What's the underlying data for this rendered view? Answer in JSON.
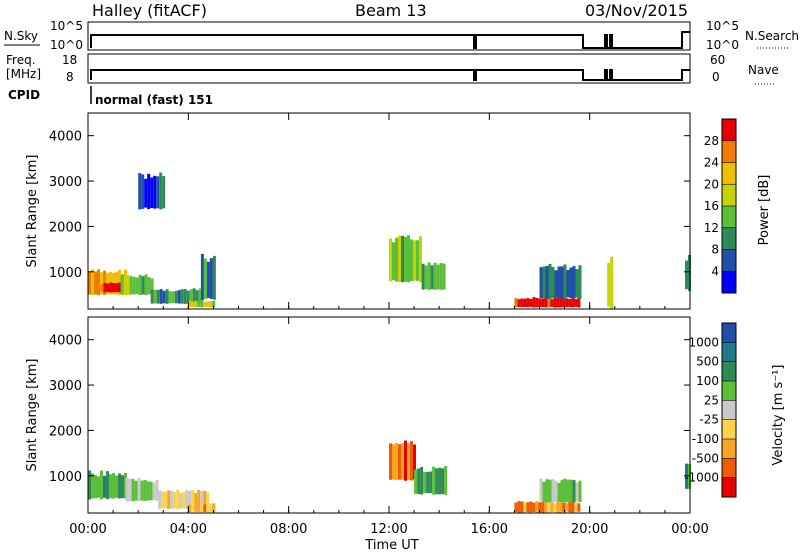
{
  "header": {
    "station": "Halley (fitACF)",
    "beam": "Beam 13",
    "date": "03/Nov/2015"
  },
  "strips": {
    "nsky": {
      "label": "N.Sky",
      "tick_hi": "10^5",
      "tick_lo": "10^0",
      "right_label": "N.Search",
      "right_tick_hi": "10^5",
      "right_tick_lo": "10^0"
    },
    "freq": {
      "label_line1": "Freq.",
      "label_line2": "[MHz]",
      "tick_hi": "18",
      "tick_lo": "8",
      "right_label": "Nave",
      "right_tick_hi": "60",
      "right_tick_lo": "0"
    },
    "cpid": {
      "label": "CPID",
      "value": "normal (fast) 151"
    }
  },
  "chart_data": [
    {
      "type": "heatmap",
      "panel": "power",
      "ylabel": "Slant Range [km]",
      "xlabel": "",
      "yticks": [
        "1000",
        "2000",
        "3000",
        "4000"
      ],
      "ylim": [
        180,
        4500
      ],
      "xlim_hours": [
        0,
        24
      ],
      "colorbar": {
        "label": "Power [dB]",
        "ticks": [
          "4",
          "8",
          "12",
          "16",
          "20",
          "24",
          "28"
        ],
        "range": [
          0,
          32
        ],
        "colors": [
          "#0000ff",
          "#1f4fa8",
          "#2e8b57",
          "#5cbf3a",
          "#c8d200",
          "#f0c000",
          "#f07d00",
          "#e80000"
        ]
      },
      "patches": [
        {
          "t0": 0.0,
          "t1": 1.5,
          "r0": 500,
          "r1": 1000,
          "level": 0.75
        },
        {
          "t0": 0.5,
          "t1": 1.3,
          "r0": 550,
          "r1": 750,
          "level": 0.95
        },
        {
          "t0": 1.3,
          "t1": 2.5,
          "r0": 500,
          "r1": 900,
          "level": 0.45
        },
        {
          "t0": 2.5,
          "t1": 4.5,
          "r0": 300,
          "r1": 600,
          "level": 0.3
        },
        {
          "t0": 4.0,
          "t1": 5.0,
          "r0": 220,
          "r1": 350,
          "level": 0.55
        },
        {
          "t0": 4.5,
          "t1": 5.0,
          "r0": 400,
          "r1": 1300,
          "level": 0.3
        },
        {
          "t0": 2.0,
          "t1": 3.0,
          "r0": 2400,
          "r1": 3100,
          "level": 0.2
        },
        {
          "t0": 12.0,
          "t1": 13.3,
          "r0": 800,
          "r1": 1700,
          "level": 0.45
        },
        {
          "t0": 13.3,
          "t1": 14.2,
          "r0": 600,
          "r1": 1200,
          "level": 0.35
        },
        {
          "t0": 17.0,
          "t1": 19.6,
          "r0": 220,
          "r1": 420,
          "level": 0.98
        },
        {
          "t0": 18.0,
          "t1": 19.6,
          "r0": 420,
          "r1": 1100,
          "level": 0.3
        },
        {
          "t0": 20.7,
          "t1": 20.85,
          "r0": 200,
          "r1": 1300,
          "level": 0.4
        },
        {
          "t0": 23.8,
          "t1": 24.0,
          "r0": 600,
          "r1": 1300,
          "level": 0.35
        }
      ]
    },
    {
      "type": "heatmap",
      "panel": "velocity",
      "ylabel": "Slant Range [km]",
      "xlabel": "Time UT",
      "yticks": [
        "1000",
        "2000",
        "3000",
        "4000"
      ],
      "ylim": [
        180,
        4500
      ],
      "xticks": [
        "00:00",
        "04:00",
        "08:00",
        "12:00",
        "16:00",
        "20:00",
        "00:00"
      ],
      "xtick_hours": [
        0,
        4,
        8,
        12,
        16,
        20,
        24
      ],
      "xlim_hours": [
        0,
        24
      ],
      "colorbar": {
        "label": "Velocity [m s⁻¹]",
        "ticks": [
          "-1000",
          "-500",
          "-100",
          "-25",
          "25",
          "100",
          "500",
          "1000"
        ],
        "colors": [
          "#e80000",
          "#f05a00",
          "#f5a623",
          "#ffd24d",
          "#c9c9c9",
          "#5cbf3a",
          "#2e8b57",
          "#1f7a8c",
          "#1f4fa8"
        ]
      },
      "patches": [
        {
          "t0": 0.0,
          "t1": 1.5,
          "r0": 500,
          "r1": 1050,
          "level": 0.7
        },
        {
          "t0": 1.5,
          "t1": 2.8,
          "r0": 450,
          "r1": 900,
          "level": 0.55
        },
        {
          "t0": 2.8,
          "t1": 4.8,
          "r0": 280,
          "r1": 650,
          "level": 0.35
        },
        {
          "t0": 4.0,
          "t1": 5.0,
          "r0": 200,
          "r1": 380,
          "level": 0.3
        },
        {
          "t0": 12.0,
          "t1": 13.0,
          "r0": 900,
          "r1": 1750,
          "level": 0.2
        },
        {
          "t0": 13.0,
          "t1": 14.2,
          "r0": 600,
          "r1": 1150,
          "level": 0.65
        },
        {
          "t0": 17.0,
          "t1": 19.6,
          "r0": 200,
          "r1": 420,
          "level": 0.3
        },
        {
          "t0": 18.0,
          "t1": 19.6,
          "r0": 420,
          "r1": 900,
          "level": 0.6
        },
        {
          "t0": 23.8,
          "t1": 24.0,
          "r0": 700,
          "r1": 1300,
          "level": 0.75
        }
      ]
    }
  ]
}
